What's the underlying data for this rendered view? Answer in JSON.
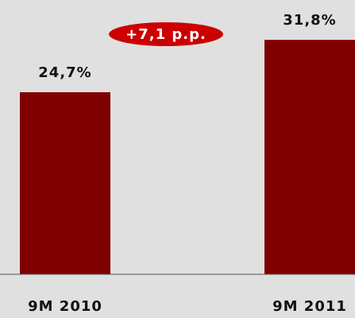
{
  "chart_data": {
    "type": "bar",
    "categories": [
      "9M 2010",
      "9M 2011"
    ],
    "values": [
      24.7,
      31.8
    ],
    "value_labels": [
      "24,7%",
      "31,8%"
    ],
    "color": "#800000",
    "ylim": [
      0,
      35
    ],
    "annotation": "+7,1 p.p.",
    "annotation_color": "#cc0000"
  }
}
